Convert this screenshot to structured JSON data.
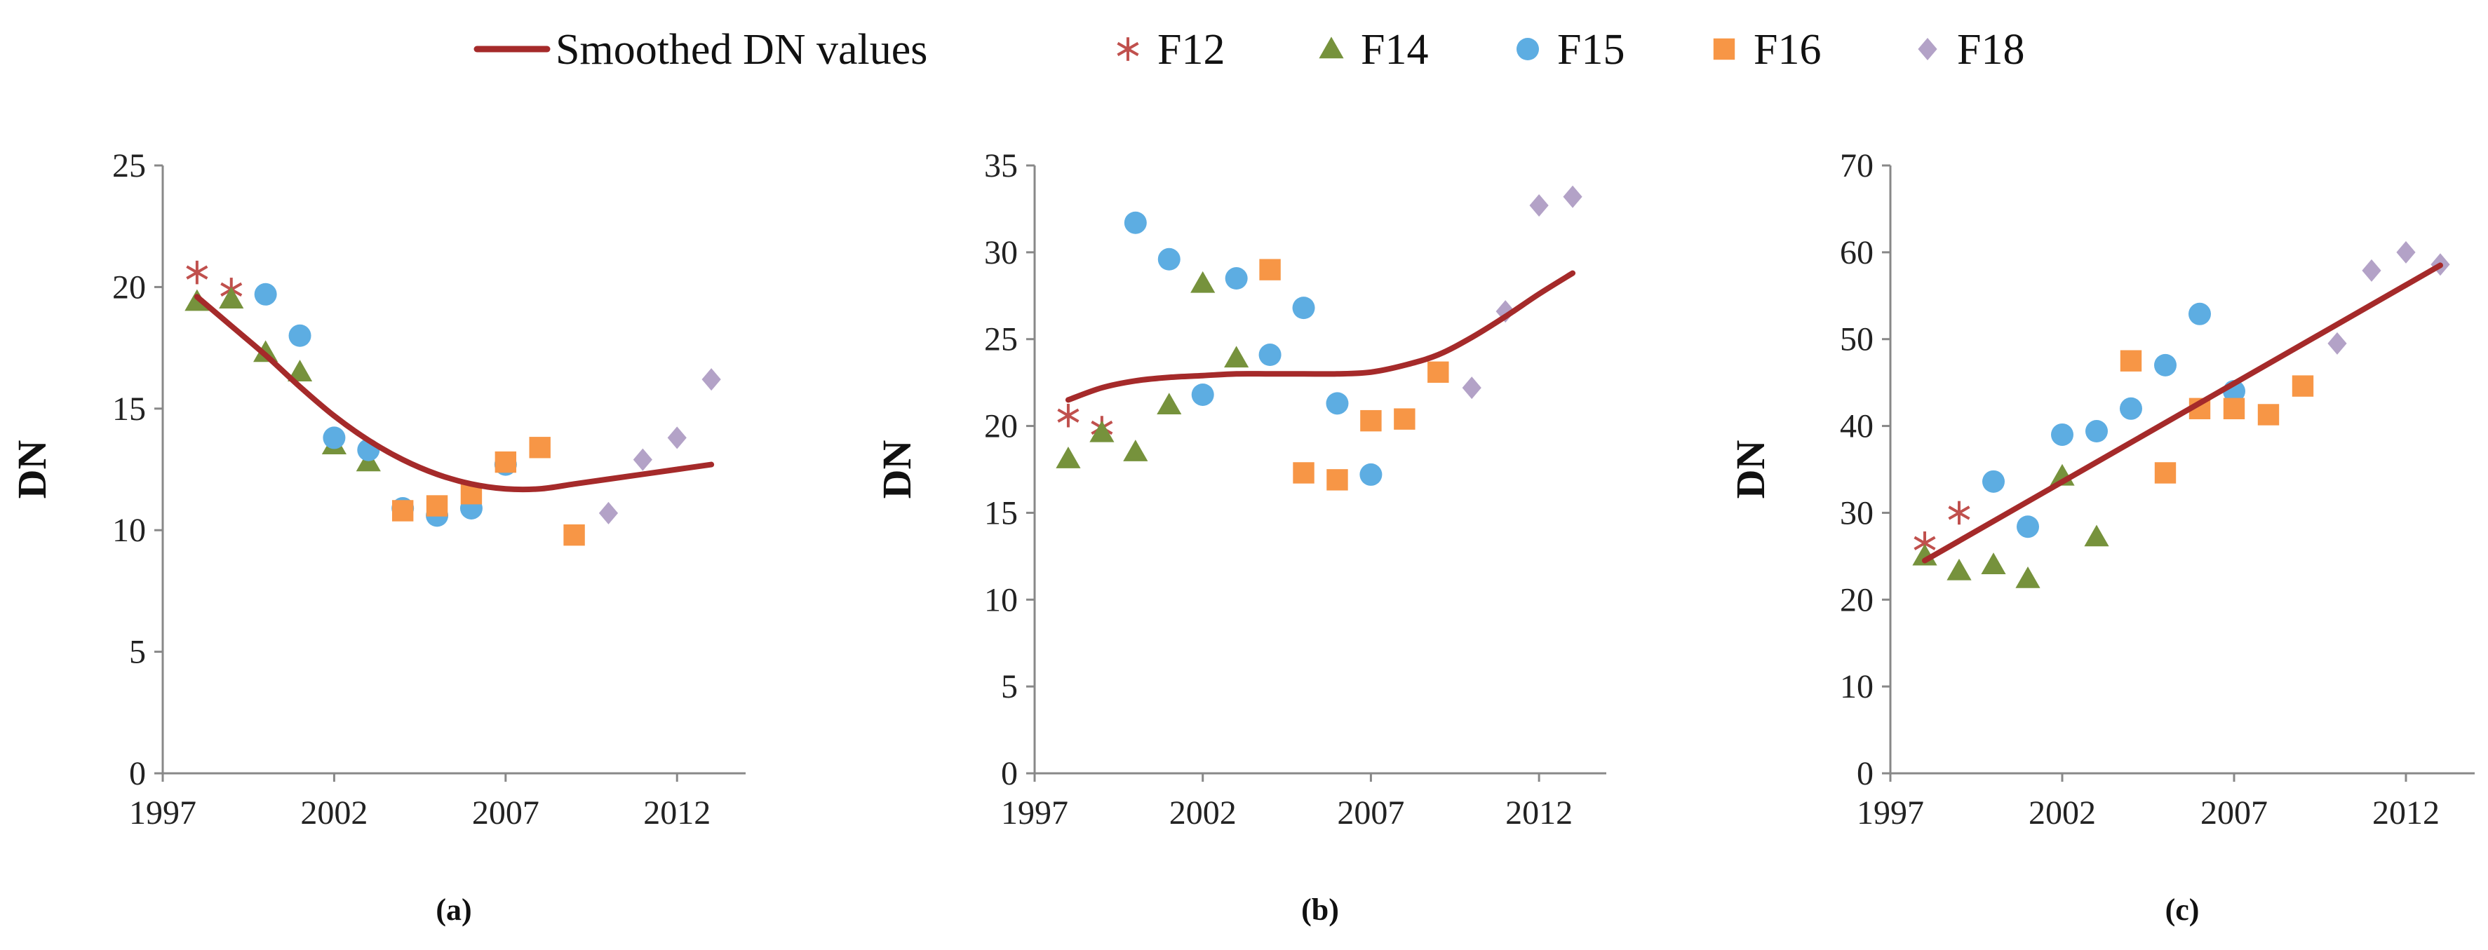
{
  "legend": [
    {
      "key": "smoothed",
      "label": "Smoothed DN values",
      "kind": "line"
    },
    {
      "key": "F12",
      "label": "F12",
      "kind": "star"
    },
    {
      "key": "F14",
      "label": "F14",
      "kind": "triangle"
    },
    {
      "key": "F15",
      "label": "F15",
      "kind": "circle"
    },
    {
      "key": "F16",
      "label": "F16",
      "kind": "square"
    },
    {
      "key": "F18",
      "label": "F18",
      "kind": "diamond"
    }
  ],
  "colors": {
    "smoothed": "#a52a2a",
    "F12": "#c0504d",
    "F14": "#76923c",
    "F15": "#5dade2",
    "F16": "#f79646",
    "F18": "#b3a2c7",
    "axis": "#888888"
  },
  "chart_data": [
    {
      "type": "scatter",
      "panel": "(a)",
      "ylabel": "DN",
      "xlim": [
        1997,
        2014
      ],
      "ylim": [
        0,
        25
      ],
      "xticks": [
        1997,
        2002,
        2007,
        2012
      ],
      "yticks": [
        0,
        5,
        10,
        15,
        20,
        25
      ],
      "series": [
        {
          "name": "F12",
          "x": [
            1998,
            1999
          ],
          "y": [
            20.6,
            19.9
          ]
        },
        {
          "name": "F14",
          "x": [
            1998,
            1999,
            2000,
            2001,
            2002,
            2003
          ],
          "y": [
            19.4,
            19.5,
            17.3,
            16.5,
            13.5,
            12.8
          ]
        },
        {
          "name": "F15",
          "x": [
            2000,
            2001,
            2002,
            2003,
            2004,
            2005,
            2006,
            2007
          ],
          "y": [
            19.7,
            18.0,
            13.8,
            13.3,
            10.9,
            10.6,
            10.9,
            12.7
          ]
        },
        {
          "name": "F16",
          "x": [
            2004,
            2005,
            2006,
            2007,
            2008,
            2009
          ],
          "y": [
            10.8,
            11.0,
            11.5,
            12.8,
            13.4,
            9.8
          ]
        },
        {
          "name": "F18",
          "x": [
            2010,
            2011,
            2012,
            2013
          ],
          "y": [
            10.7,
            12.9,
            13.8,
            16.2
          ]
        },
        {
          "name": "Smoothed DN values",
          "line": true,
          "x": [
            1998,
            1999,
            2000,
            2001,
            2002,
            2003,
            2004,
            2005,
            2006,
            2007,
            2008,
            2009,
            2010,
            2011,
            2012,
            2013
          ],
          "y": [
            19.6,
            18.4,
            17.2,
            15.9,
            14.7,
            13.7,
            12.9,
            12.3,
            11.9,
            11.7,
            11.7,
            11.9,
            12.1,
            12.3,
            12.5,
            12.7
          ]
        }
      ]
    },
    {
      "type": "scatter",
      "panel": "(b)",
      "ylabel": "DN",
      "xlim": [
        1997,
        2014
      ],
      "ylim": [
        0,
        35
      ],
      "xticks": [
        1997,
        2002,
        2007,
        2012
      ],
      "yticks": [
        0,
        5,
        10,
        15,
        20,
        25,
        30,
        35
      ],
      "series": [
        {
          "name": "F12",
          "x": [
            1998,
            1999
          ],
          "y": [
            20.6,
            19.9
          ]
        },
        {
          "name": "F14",
          "x": [
            1998,
            1999,
            2000,
            2001,
            2002,
            2003
          ],
          "y": [
            18.1,
            19.6,
            18.5,
            21.2,
            28.2,
            23.9
          ]
        },
        {
          "name": "F15",
          "x": [
            2000,
            2001,
            2002,
            2003,
            2004,
            2005,
            2006,
            2007
          ],
          "y": [
            31.7,
            29.6,
            21.8,
            28.5,
            24.1,
            26.8,
            21.3,
            17.2
          ]
        },
        {
          "name": "F16",
          "x": [
            2004,
            2005,
            2006,
            2007,
            2008,
            2009
          ],
          "y": [
            29.0,
            17.3,
            16.9,
            20.3,
            20.4,
            23.1
          ]
        },
        {
          "name": "F18",
          "x": [
            2010,
            2011,
            2012,
            2013
          ],
          "y": [
            22.2,
            26.6,
            32.7,
            33.2
          ]
        },
        {
          "name": "Smoothed DN values",
          "line": true,
          "x": [
            1998,
            1999,
            2000,
            2001,
            2002,
            2003,
            2004,
            2005,
            2006,
            2007,
            2008,
            2009,
            2010,
            2011,
            2012,
            2013
          ],
          "y": [
            21.5,
            22.2,
            22.6,
            22.8,
            22.9,
            23.0,
            23.0,
            23.0,
            23.0,
            23.1,
            23.5,
            24.1,
            25.1,
            26.3,
            27.6,
            28.8
          ]
        }
      ]
    },
    {
      "type": "scatter",
      "panel": "(c)",
      "ylabel": "DN",
      "xlim": [
        1997,
        2014
      ],
      "ylim": [
        0,
        70
      ],
      "xticks": [
        1997,
        2002,
        2007,
        2012
      ],
      "yticks": [
        0,
        10,
        20,
        30,
        40,
        50,
        60,
        70
      ],
      "series": [
        {
          "name": "F12",
          "x": [
            1998,
            1999
          ],
          "y": [
            26.5,
            30.0
          ]
        },
        {
          "name": "F14",
          "x": [
            1998,
            1999,
            2000,
            2001,
            2002,
            2003
          ],
          "y": [
            25.0,
            23.3,
            24.0,
            22.4,
            34.2,
            27.2
          ]
        },
        {
          "name": "F15",
          "x": [
            2000,
            2001,
            2002,
            2003,
            2004,
            2005,
            2006,
            2007
          ],
          "y": [
            33.6,
            28.4,
            39.0,
            39.4,
            42.0,
            47.0,
            52.9,
            44.0
          ]
        },
        {
          "name": "F16",
          "x": [
            2004,
            2005,
            2006,
            2007,
            2008,
            2009
          ],
          "y": [
            47.5,
            34.6,
            42.0,
            42.0,
            41.3,
            44.6
          ]
        },
        {
          "name": "F18",
          "x": [
            2010,
            2011,
            2012,
            2013
          ],
          "y": [
            49.5,
            57.9,
            60.0,
            58.6
          ]
        },
        {
          "name": "Smoothed DN values",
          "line": true,
          "x": [
            1998,
            2013
          ],
          "y": [
            24.5,
            58.5
          ]
        }
      ]
    }
  ]
}
